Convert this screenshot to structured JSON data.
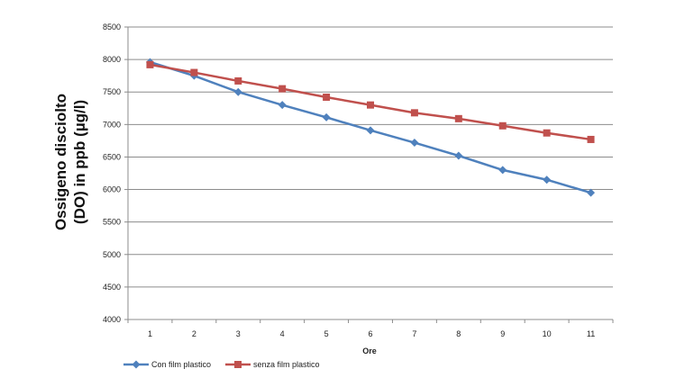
{
  "chart_data": {
    "type": "line",
    "title": "",
    "xlabel": "Ore",
    "ylabel_line1": "Ossigeno disciolto",
    "ylabel_line2": "(DO) in ppb (µg/l)",
    "x": [
      1,
      2,
      3,
      4,
      5,
      6,
      7,
      8,
      9,
      10,
      11
    ],
    "ylim": [
      4000,
      8500
    ],
    "yticks": [
      4000,
      4500,
      5000,
      5500,
      6000,
      6500,
      7000,
      7500,
      8000,
      8500
    ],
    "grid": "horizontal",
    "legend_position": "bottom-left",
    "series": [
      {
        "name": "Con film plastico",
        "color": "#4f81bd",
        "marker": "diamond",
        "values": [
          7960,
          7750,
          7500,
          7300,
          7110,
          6910,
          6720,
          6520,
          6300,
          6150,
          5950
        ]
      },
      {
        "name": "senza film plastico",
        "color": "#c0504d",
        "marker": "square",
        "values": [
          7920,
          7800,
          7670,
          7550,
          7420,
          7300,
          7180,
          7090,
          6980,
          6870,
          6770
        ]
      }
    ]
  }
}
